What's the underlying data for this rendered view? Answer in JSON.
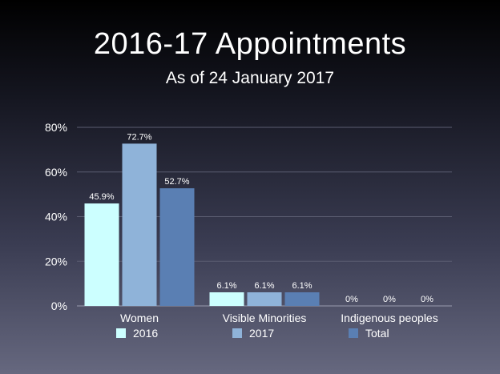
{
  "chart_data": {
    "type": "bar",
    "title": "2016-17 Appointments",
    "subtitle": "As of 24 January 2017",
    "categories": [
      "Women",
      "Visible Minorities",
      "Indigenous peoples"
    ],
    "series": [
      {
        "name": "2016",
        "values": [
          45.9,
          6.1,
          0
        ],
        "labels": [
          "45.9%",
          "6.1%",
          "0%"
        ],
        "color": "#ccffff"
      },
      {
        "name": "2017",
        "values": [
          72.7,
          6.1,
          0
        ],
        "labels": [
          "72.7%",
          "6.1%",
          "0%"
        ],
        "color": "#8fb3d9"
      },
      {
        "name": "Total",
        "values": [
          52.7,
          6.1,
          0
        ],
        "labels": [
          "52.7%",
          "6.1%",
          "0%"
        ],
        "color": "#5a7fb3"
      }
    ],
    "ylim": [
      0,
      80
    ],
    "yticks": [
      "0%",
      "20%",
      "40%",
      "60%",
      "80%"
    ],
    "ytick_values": [
      0,
      20,
      40,
      60,
      80
    ],
    "grid": true,
    "legend_position": "bottom"
  }
}
